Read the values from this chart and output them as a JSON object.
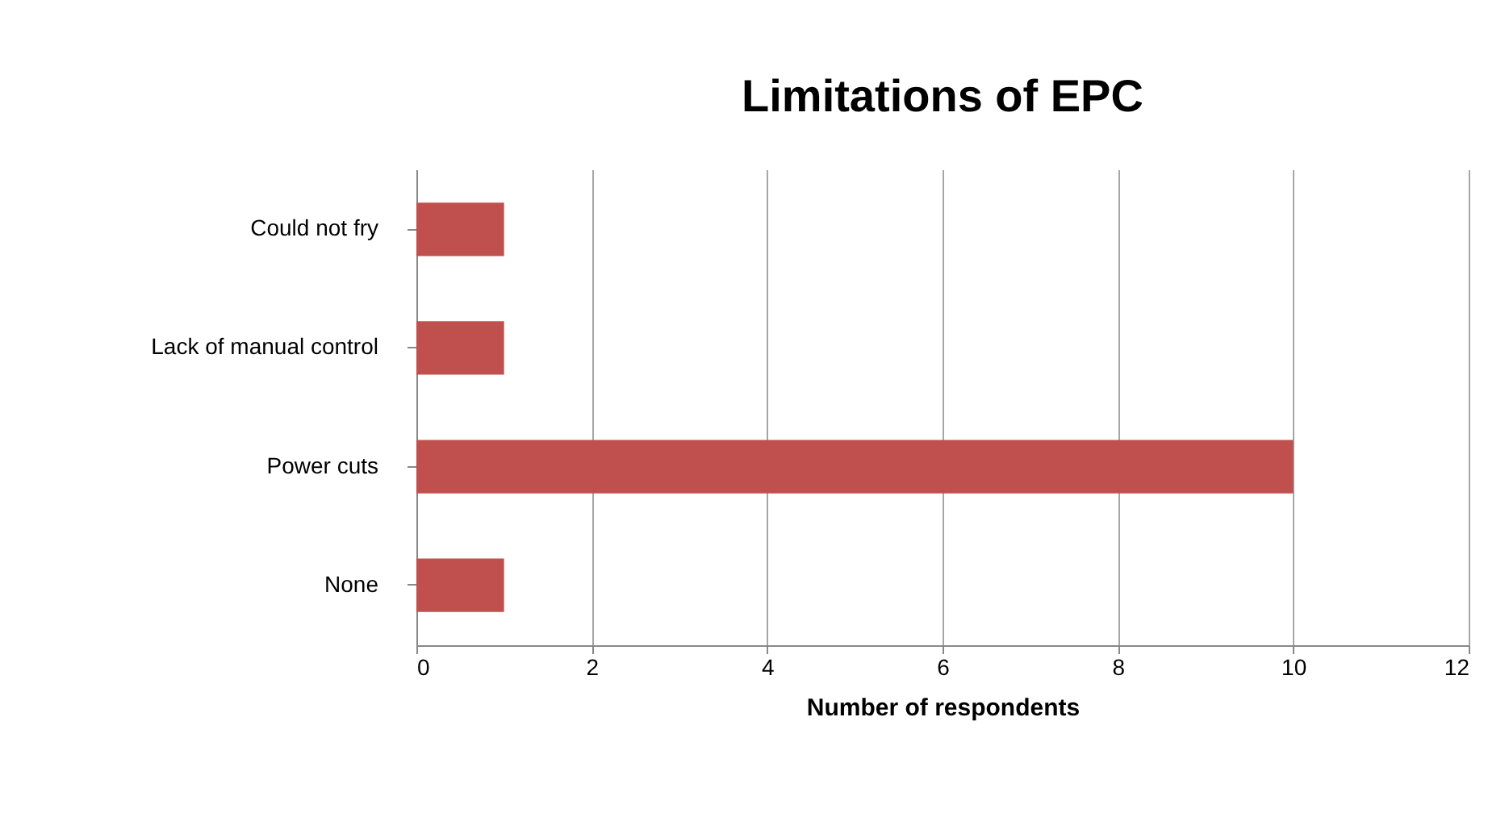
{
  "chart_data": {
    "type": "bar",
    "orientation": "horizontal",
    "title": "Limitations of EPC",
    "xlabel": "Number of respondents",
    "categories": [
      "Could not fry",
      "Lack of manual control",
      "Power cuts",
      "None"
    ],
    "values": [
      1,
      1,
      10,
      1
    ],
    "color": "#c0504d",
    "xlim": [
      0,
      12
    ],
    "xticks": [
      0,
      2,
      4,
      6,
      8,
      10,
      12
    ],
    "grid": "x"
  }
}
